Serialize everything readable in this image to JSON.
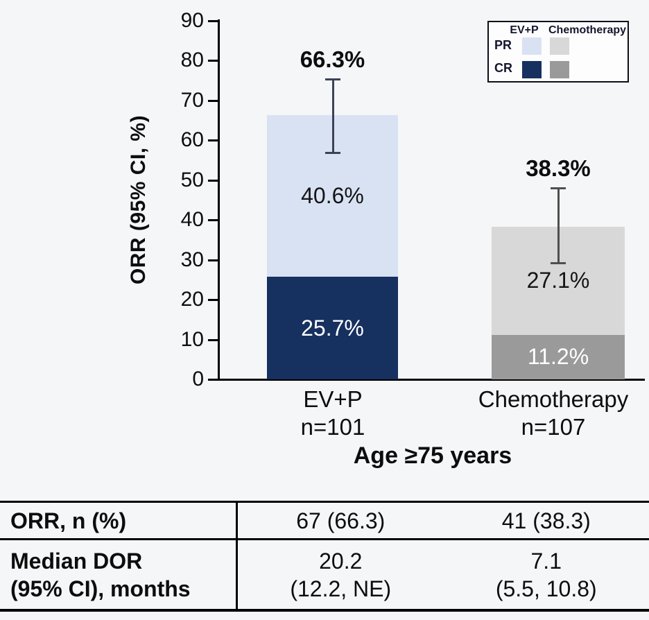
{
  "figure": {
    "background": "#f5f6f8"
  },
  "chart_data": {
    "type": "bar",
    "stacked": true,
    "title": "",
    "ylabel": "ORR (95% CI, %)",
    "xlabel": "Age ≥75 years",
    "ylim": [
      0,
      90
    ],
    "yticks": [
      0,
      10,
      20,
      30,
      40,
      50,
      60,
      70,
      80,
      90
    ],
    "grid": false,
    "categories": [
      "EV+P",
      "Chemotherapy"
    ],
    "category_sublabels": [
      "n=101",
      "n=107"
    ],
    "series": [
      {
        "name": "PR",
        "values": [
          40.6,
          27.1
        ],
        "labels": [
          "40.6%",
          "27.1%"
        ],
        "colors": [
          "#d9e2f3",
          "#d8d8d8"
        ],
        "text_colors": [
          "#141414",
          "#141414"
        ]
      },
      {
        "name": "CR",
        "values": [
          25.7,
          11.2
        ],
        "labels": [
          "25.7%",
          "11.2%"
        ],
        "colors": [
          "#16305f",
          "#9a9a9a"
        ],
        "text_colors": [
          "#ffffff",
          "#ffffff"
        ]
      }
    ],
    "totals": [
      66.3,
      38.3
    ],
    "total_labels": [
      "66.3%",
      "38.3%"
    ],
    "error_bars": [
      {
        "low": 56.5,
        "high": 75.5
      },
      {
        "low": 28.9,
        "high": 48.2
      }
    ],
    "error_colors": [
      "#3c4257",
      "#4f4f4f"
    ],
    "legend": {
      "position": "top-right",
      "columns": [
        "EV+P",
        "Chemotherapy"
      ],
      "rows": [
        "PR",
        "CR"
      ]
    }
  },
  "summary_table": {
    "rows": [
      {
        "label_line1": "ORR, n (%)",
        "label_line2": "",
        "values": [
          {
            "line1": "67 (66.3)",
            "line2": ""
          },
          {
            "line1": "41 (38.3)",
            "line2": ""
          }
        ]
      },
      {
        "label_line1": "Median DOR",
        "label_line2": "(95% CI), months",
        "values": [
          {
            "line1": "20.2",
            "line2": "(12.2, NE)"
          },
          {
            "line1": "7.1",
            "line2": "(5.5, 10.8)"
          }
        ]
      }
    ]
  }
}
